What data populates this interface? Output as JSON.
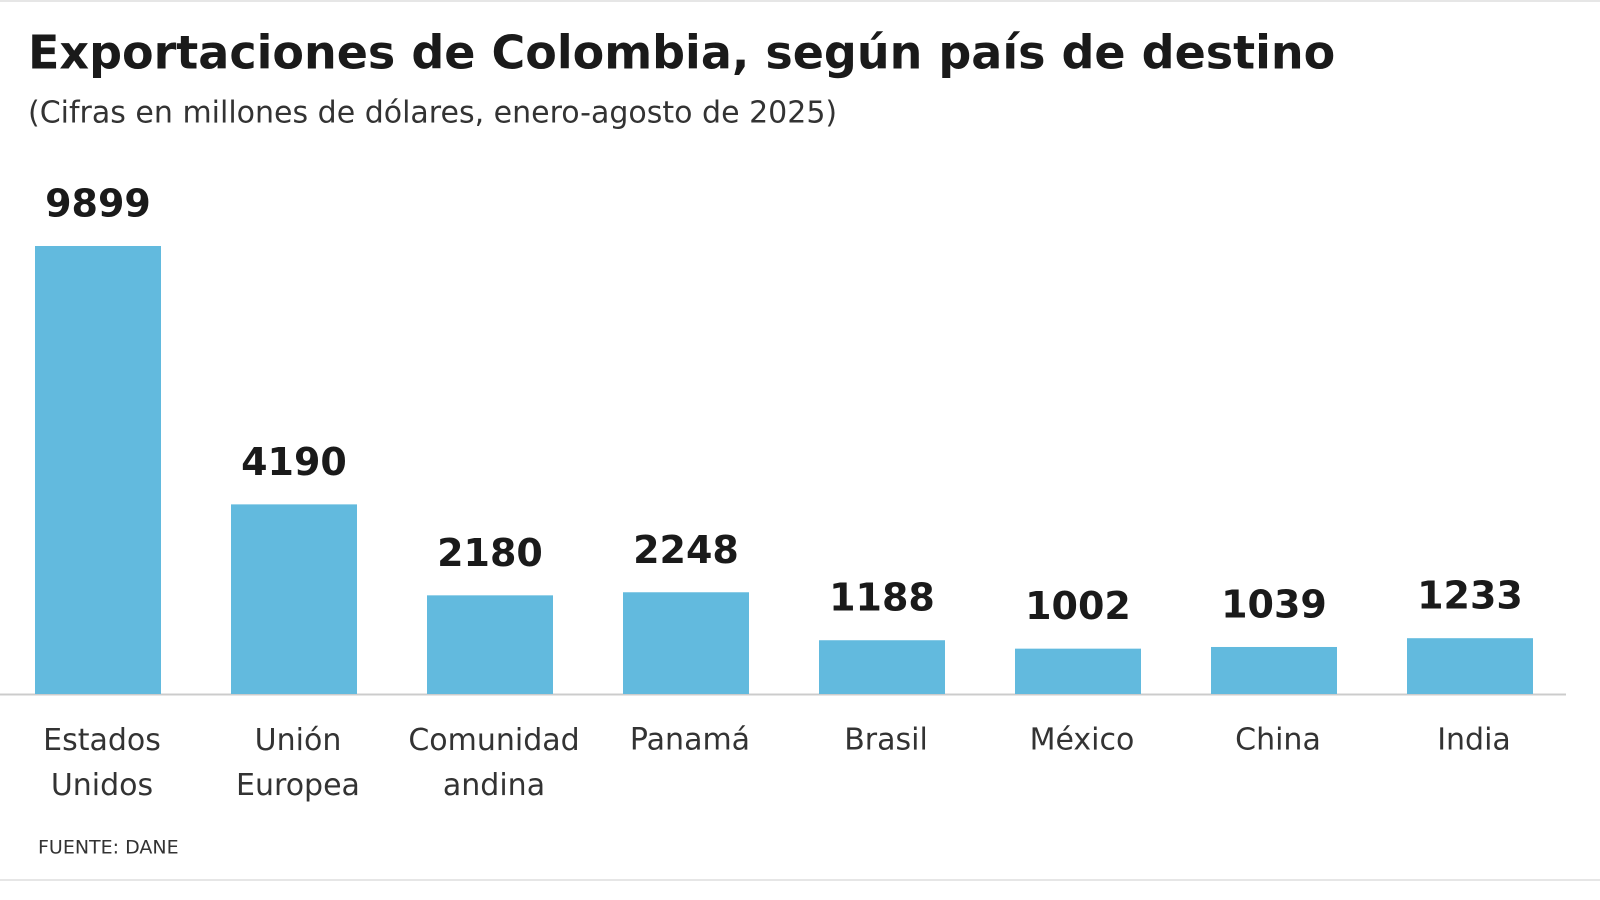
{
  "chart_data": {
    "type": "bar",
    "title": "Exportaciones de Colombia, según país de destino",
    "subtitle": "(Cifras en millones de dólares, enero-agosto de 2025)",
    "categories": [
      "Estados Unidos",
      "Unión Europea",
      "Comunidad andina",
      "Panamá",
      "Brasil",
      "México",
      "China",
      "India"
    ],
    "values": [
      9899,
      4190,
      2180,
      2248,
      1188,
      1002,
      1039,
      1233
    ],
    "color": "#62bade",
    "source": "FUENTE: DANE"
  }
}
